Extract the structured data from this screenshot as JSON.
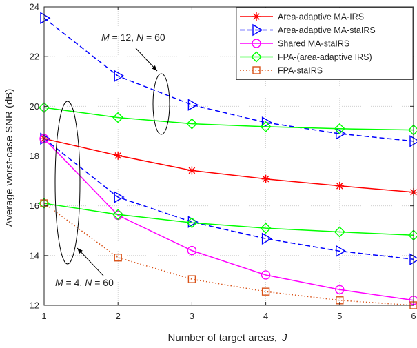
{
  "chart_data": {
    "type": "line",
    "xlabel": "Number of target areas,",
    "xlabel_var": "J",
    "ylabel": "Average worst-case SNR (dB)",
    "xlim": [
      1,
      6
    ],
    "ylim": [
      12,
      24
    ],
    "xticks": [
      1,
      2,
      3,
      4,
      5,
      6
    ],
    "yticks": [
      12,
      14,
      16,
      18,
      20,
      22,
      24
    ],
    "grid": true,
    "legend_position": "top-right",
    "x": [
      1,
      2,
      3,
      4,
      5,
      6
    ],
    "series": [
      {
        "name": "Area-adaptive MA-IRS",
        "group": "M = 4, N = 60",
        "color": "#ff0000",
        "dash": "solid",
        "marker": "asterisk",
        "values": [
          18.7,
          18.02,
          17.42,
          17.08,
          16.8,
          16.55
        ]
      },
      {
        "name": "Area-adaptive MA-staIRS",
        "group": "M = 12, N = 60",
        "color": "#0000ff",
        "dash": "dashed",
        "marker": "triangle-right",
        "values": [
          23.55,
          21.22,
          20.06,
          19.35,
          18.9,
          18.6
        ]
      },
      {
        "name": "Area-adaptive MA-staIRS",
        "group": "M = 4, N = 60",
        "color": "#0000ff",
        "dash": "dashed",
        "marker": "triangle-right",
        "values": [
          18.7,
          16.35,
          15.35,
          14.68,
          14.18,
          13.85
        ]
      },
      {
        "name": "Shared MA-staIRS",
        "group": "M = 4, N = 60",
        "color": "#ff00ff",
        "dash": "solid",
        "marker": "circle",
        "values": [
          18.7,
          15.62,
          14.2,
          13.22,
          12.63,
          12.2
        ]
      },
      {
        "name": "FPA-(area-adaptive IRS)",
        "group": "M = 12, N = 60",
        "color": "#00ff00",
        "dash": "solid",
        "marker": "diamond",
        "values": [
          19.95,
          19.55,
          19.3,
          19.18,
          19.1,
          19.05
        ]
      },
      {
        "name": "FPA-(area-adaptive IRS)",
        "group": "M = 4, N = 60",
        "color": "#00ff00",
        "dash": "solid",
        "marker": "diamond",
        "values": [
          16.1,
          15.65,
          15.32,
          15.1,
          14.95,
          14.82
        ]
      },
      {
        "name": "FPA-staIRS",
        "group": "M = 4, N = 60",
        "color": "#d95319",
        "dash": "dotted",
        "marker": "square",
        "values": [
          16.1,
          13.92,
          13.05,
          12.55,
          12.2,
          12.0
        ]
      }
    ],
    "legend": [
      {
        "label": "Area-adaptive MA-IRS",
        "color": "#ff0000",
        "dash": "solid",
        "marker": "asterisk"
      },
      {
        "label": "Area-adaptive MA-staIRS",
        "color": "#0000ff",
        "dash": "dashed",
        "marker": "triangle-right"
      },
      {
        "label": "Shared MA-staIRS",
        "color": "#ff00ff",
        "dash": "solid",
        "marker": "circle"
      },
      {
        "label": "FPA-(area-adaptive IRS)",
        "color": "#00ff00",
        "dash": "solid",
        "marker": "diamond"
      },
      {
        "label": "FPA-staIRS",
        "color": "#d95319",
        "dash": "dotted",
        "marker": "square"
      }
    ],
    "annotations": [
      {
        "id": "m12",
        "var1": "M",
        "eq1": " = 12, ",
        "var2": "N",
        "eq2": " = 60"
      },
      {
        "id": "m4",
        "var1": "M",
        "eq1": " = 4, ",
        "var2": "N",
        "eq2": " = 60"
      }
    ]
  }
}
